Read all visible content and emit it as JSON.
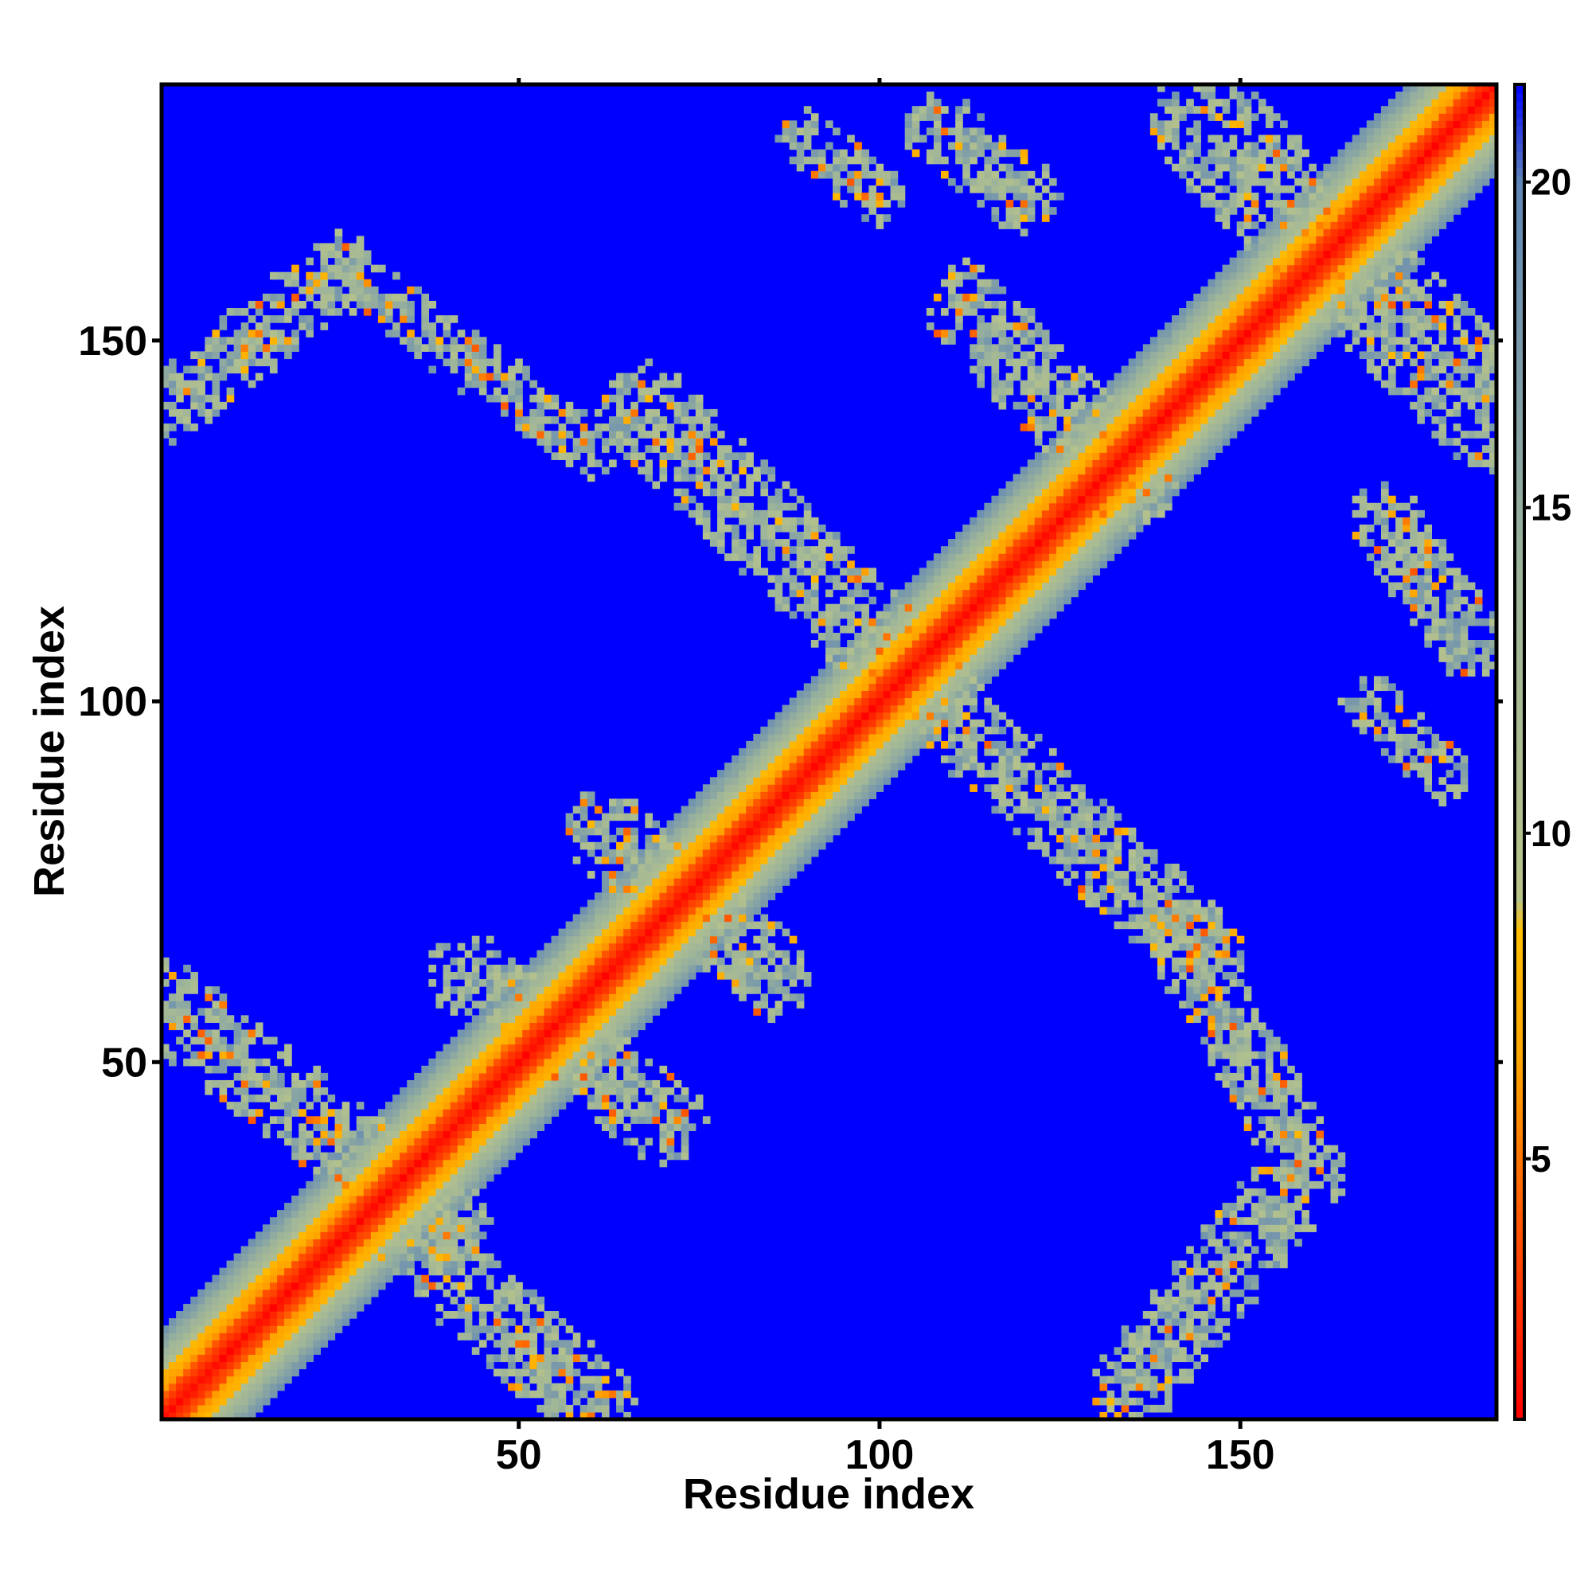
{
  "chart_data": {
    "type": "heatmap",
    "title": "",
    "xlabel": "Residue index",
    "ylabel": "Residue index",
    "n_residues": 185,
    "xlim": [
      1,
      185
    ],
    "ylim": [
      1,
      185
    ],
    "x_ticks": [
      50,
      100,
      150
    ],
    "y_ticks": [
      50,
      100,
      150
    ],
    "x_tick_labels": [
      "50",
      "100",
      "150"
    ],
    "y_tick_labels": [
      "50",
      "100",
      "150"
    ],
    "colorbar": {
      "range": [
        1,
        21.5
      ],
      "ticks": [
        5,
        10,
        15,
        20
      ],
      "tick_labels": [
        "5",
        "10",
        "15",
        "20"
      ],
      "stops": [
        {
          "value": 1,
          "color": "#ff0000"
        },
        {
          "value": 4,
          "color": "#ff5500"
        },
        {
          "value": 6.5,
          "color": "#ffa500"
        },
        {
          "value": 8.5,
          "color": "#ffbf00"
        },
        {
          "value": 9,
          "color": "#b9c48a"
        },
        {
          "value": 14,
          "color": "#9db49a"
        },
        {
          "value": 20,
          "color": "#5f86b6"
        },
        {
          "value": 21.5,
          "color": "#0000ff"
        }
      ]
    },
    "background_value": 21.5,
    "background_color": "#0000ff",
    "diagonal_band": {
      "core_width": 3,
      "mid_width": 6,
      "outer_width": 12
    },
    "contact_regions": [
      {
        "x_from": [
          1,
          58
        ],
        "x_to": [
          40,
          28
        ],
        "half_width": 6,
        "description": "antiparallel"
      },
      {
        "x_from": [
          30,
          30
        ],
        "x_to": [
          60,
          3
        ],
        "half_width": 6
      },
      {
        "x_from": [
          43,
          62
        ],
        "x_to": [
          70,
          42
        ],
        "half_width": 6
      },
      {
        "x_from": [
          62,
          82
        ],
        "x_to": [
          85,
          62
        ],
        "half_width": 6
      },
      {
        "x_from": [
          68,
          140
        ],
        "x_to": [
          105,
          103
        ],
        "half_width": 7
      },
      {
        "x_from": [
          108,
          100
        ],
        "x_to": [
          145,
          65
        ],
        "half_width": 6
      },
      {
        "x_from": [
          140,
          70
        ],
        "x_to": [
          160,
          35
        ],
        "half_width": 5
      },
      {
        "x_from": [
          135,
          5
        ],
        "x_to": [
          155,
          30
        ],
        "half_width": 6
      },
      {
        "x_from": [
          1,
          140
        ],
        "x_to": [
          25,
          160
        ],
        "half_width": 5
      },
      {
        "x_from": [
          25,
          160
        ],
        "x_to": [
          60,
          135
        ],
        "half_width": 4
      },
      {
        "x_from": [
          112,
          155
        ],
        "x_to": [
          135,
          130
        ],
        "half_width": 6
      },
      {
        "x_from": [
          145,
          180
        ],
        "x_to": [
          185,
          140
        ],
        "half_width": 8
      },
      {
        "x_from": [
          90,
          178
        ],
        "x_to": [
          100,
          170
        ],
        "half_width": 4
      },
      {
        "x_from": [
          108,
          180
        ],
        "x_to": [
          120,
          170
        ],
        "half_width": 5
      },
      {
        "x_from": [
          170,
          125
        ],
        "x_to": [
          182,
          108
        ],
        "half_width": 5
      },
      {
        "x_from": [
          168,
          100
        ],
        "x_to": [
          178,
          90
        ],
        "half_width": 4
      }
    ]
  }
}
